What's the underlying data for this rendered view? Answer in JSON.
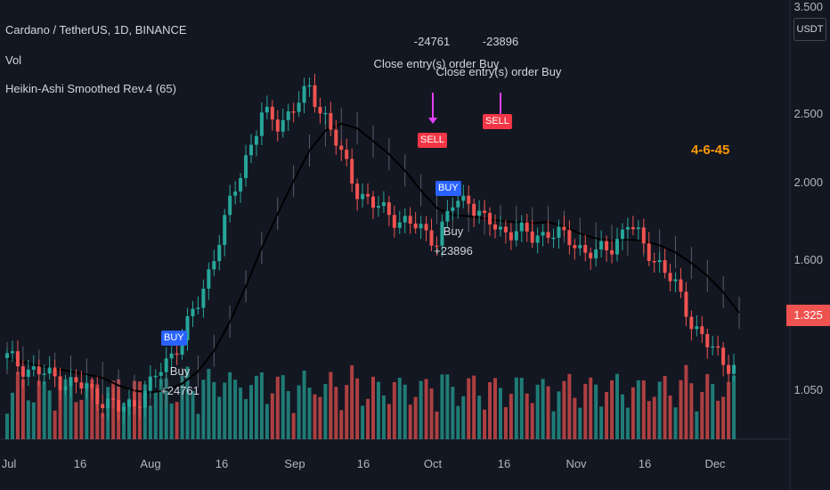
{
  "header": {
    "symbol": "Cardano / TetherUS, 1D, BINANCE",
    "indicator_vol": "Vol",
    "indicator_ha": "Heikin-Ashi Smoothed Rev.4 (65)"
  },
  "price_scale": {
    "currency": "USDT",
    "ticks": [
      "3.500",
      "2.500",
      "2.000",
      "1.600",
      "1.050"
    ],
    "last_price": "1.325"
  },
  "time_axis": {
    "labels": [
      "Jul",
      "16",
      "Aug",
      "16",
      "Sep",
      "16",
      "Oct",
      "16",
      "Nov",
      "16",
      "Dec"
    ]
  },
  "annotations": {
    "close_top_1": "-24761",
    "close_top_1_text": "Close entry(s) order Buy",
    "close_top_2": "-23896",
    "close_top_2_text": "Close entry(s) order Buy",
    "sell_tag_1": "SELL",
    "sell_tag_2": "SELL",
    "buy_tag_1": "BUY",
    "buy_tag_2": "BUY",
    "buy_label_1": "Buy",
    "buy_value_1": "+24761",
    "buy_label_2": "Buy",
    "buy_value_2": "+23896",
    "ha_signal": "4-6-45"
  },
  "colors": {
    "up": "#26a69a",
    "down": "#ef5350",
    "band": "#787b86",
    "ha_line": "#f0a030",
    "vol_up": "#26a69a",
    "vol_down": "#ef5350"
  },
  "chart_data": {
    "type": "candlestick",
    "ylim": [
      1.0,
      3.5
    ],
    "ticks": [
      3.5,
      2.5,
      2.0,
      1.6,
      1.05
    ],
    "series": [
      {
        "name": "ADA/USDT",
        "values": [
          1.37,
          1.32,
          1.28,
          1.25,
          1.22,
          1.18,
          1.12,
          1.05,
          1.1,
          1.2,
          1.35,
          1.5,
          1.7,
          2.0,
          2.3,
          2.6,
          2.85,
          2.8,
          2.9,
          3.0,
          2.85,
          2.6,
          2.4,
          2.3,
          2.25,
          2.2,
          2.15,
          2.1,
          2.3,
          2.35,
          2.2,
          2.15,
          2.15,
          2.1,
          2.15,
          2.1,
          2.05,
          2.0,
          2.05,
          2.2,
          2.05,
          1.95,
          1.8,
          1.6,
          1.45,
          1.35,
          1.325
        ]
      }
    ]
  }
}
